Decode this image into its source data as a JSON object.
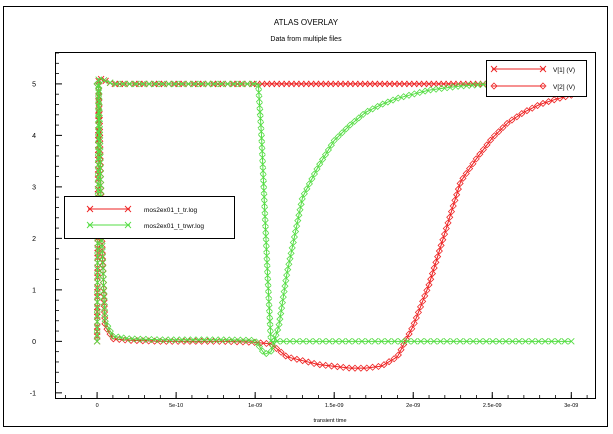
{
  "window": {
    "title": "ATLAS OVERLAY"
  },
  "chart_data": {
    "type": "line",
    "title": "ATLAS OVERLAY",
    "subtitle": "Data from multiple files",
    "xlabel": "transient time",
    "ylabel": "",
    "xlim": [
      -2.6e-10,
      3.15e-09
    ],
    "ylim": [
      -1.1,
      5.6
    ],
    "grid": false,
    "x_ticks": [
      0,
      5e-10,
      1e-09,
      1.5e-09,
      2e-09,
      2.5e-09,
      3e-09
    ],
    "x_tick_labels": [
      "0",
      "5e-10",
      "1e-09",
      "1.5e-09",
      "2e-09",
      "2.5e-09",
      "3e-09"
    ],
    "y_ticks": [
      -1,
      0,
      1,
      2,
      3,
      4,
      5
    ],
    "y_tick_labels": [
      "-1",
      "0",
      "1",
      "2",
      "3",
      "4",
      "5"
    ],
    "legend_files": {
      "placement": "left",
      "entries": [
        {
          "label": "mos2ex01_t_tr.log",
          "color": "#ee2222",
          "marker": "x"
        },
        {
          "label": "mos2ex01_t_trwr.log",
          "color": "#55dd44",
          "marker": "x"
        }
      ]
    },
    "legend_quantities": {
      "placement": "top-right",
      "entries": [
        {
          "label": "V[1] (V)",
          "marker": "x"
        },
        {
          "label": "V[2] (V)",
          "marker": "diamond"
        }
      ]
    },
    "series": [
      {
        "file": "mos2ex01_t_tr.log",
        "quantity": "V[1] (V)",
        "color": "#ee2222",
        "marker": "x",
        "x": [
          0,
          1e-11,
          2e-11,
          1e-10,
          1.5e-10,
          2e-10,
          3e-10,
          5e-10,
          8e-10,
          1e-09,
          1.05e-09,
          1.1e-09,
          1.2e-09,
          1.4e-09,
          1.6e-09,
          1.8e-09,
          2e-09,
          2.5e-09,
          3e-09
        ],
        "y": [
          0,
          5.1,
          5.1,
          5.0,
          5.0,
          5.0,
          5.0,
          5.0,
          5.0,
          5.0,
          5.0,
          5.0,
          5.0,
          5.0,
          5.0,
          5.0,
          5.0,
          5.0,
          5.0
        ]
      },
      {
        "file": "mos2ex01_t_tr.log",
        "quantity": "V[2] (V)",
        "color": "#ee2222",
        "marker": "diamond",
        "x": [
          0,
          1e-11,
          3e-11,
          5e-11,
          1e-10,
          2e-10,
          4e-10,
          6e-10,
          8e-10,
          1e-09,
          1.1e-09,
          1.2e-09,
          1.4e-09,
          1.6e-09,
          1.7e-09,
          1.8e-09,
          1.9e-09,
          2e-09,
          2.1e-09,
          2.2e-09,
          2.3e-09,
          2.4e-09,
          2.5e-09,
          2.6e-09,
          2.7e-09,
          2.8e-09,
          2.9e-09,
          3e-09
        ],
        "y": [
          5.0,
          5.0,
          2.0,
          0.3,
          0.05,
          0.02,
          0.0,
          0.0,
          0.0,
          -0.02,
          -0.05,
          -0.3,
          -0.45,
          -0.52,
          -0.52,
          -0.48,
          -0.3,
          0.3,
          1.1,
          2.1,
          3.1,
          3.55,
          3.95,
          4.25,
          4.45,
          4.6,
          4.7,
          4.78
        ]
      },
      {
        "file": "mos2ex01_t_trwr.log",
        "quantity": "V[1] (V)",
        "color": "#55dd44",
        "marker": "x",
        "x": [
          0,
          1e-11,
          2e-11,
          1e-10,
          3e-10,
          5e-10,
          8e-10,
          1e-09,
          1.02e-09,
          1.04e-09,
          1.06e-09,
          1.08e-09,
          1.1e-09,
          1.15e-09,
          1.3e-09,
          1.5e-09,
          2e-09,
          2.5e-09,
          3e-09
        ],
        "y": [
          0,
          5.1,
          5.1,
          5.0,
          5.0,
          5.0,
          5.0,
          5.0,
          5.0,
          4.0,
          2.6,
          1.2,
          0.0,
          0.0,
          0.0,
          0.0,
          0.0,
          0.0,
          0.0
        ]
      },
      {
        "file": "mos2ex01_t_trwr.log",
        "quantity": "V[2] (V)",
        "color": "#55dd44",
        "marker": "diamond",
        "x": [
          0,
          1e-11,
          3e-11,
          5e-11,
          1e-10,
          2e-10,
          4e-10,
          6e-10,
          8e-10,
          1e-09,
          1.06e-09,
          1.1e-09,
          1.15e-09,
          1.2e-09,
          1.3e-09,
          1.4e-09,
          1.5e-09,
          1.6e-09,
          1.7e-09,
          1.8e-09,
          1.9e-09,
          2e-09,
          2.1e-09,
          2.2e-09,
          2.3e-09,
          2.4e-09,
          2.5e-09,
          2.6e-09
        ],
        "y": [
          5.0,
          5.0,
          2.0,
          0.4,
          0.1,
          0.05,
          0.03,
          0.03,
          0.03,
          0.02,
          -0.25,
          -0.2,
          0.3,
          1.3,
          2.8,
          3.4,
          3.9,
          4.2,
          4.45,
          4.6,
          4.72,
          4.8,
          4.88,
          4.92,
          4.96,
          4.98,
          5.0,
          5.0
        ]
      }
    ]
  }
}
